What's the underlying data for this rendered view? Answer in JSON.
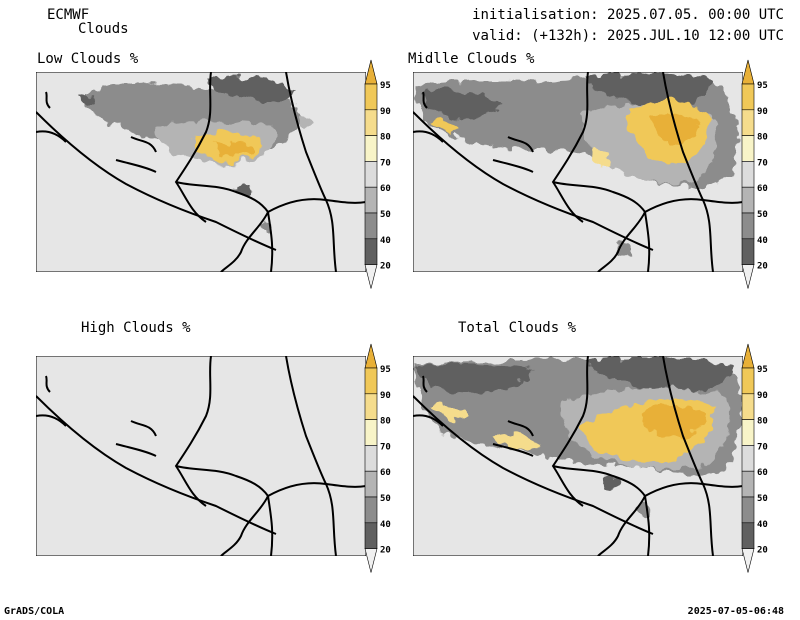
{
  "header": {
    "model": "ECMWF",
    "product": "Clouds",
    "init": "initialisation: 2025.07.05. 00:00 UTC",
    "valid": "valid: (+132h): 2025.JUL.10 12:00 UTC"
  },
  "panels": [
    {
      "title": "Low Clouds %"
    },
    {
      "title": "Midlle Clouds %"
    },
    {
      "title": "High Clouds %"
    },
    {
      "title": "Total Clouds %"
    }
  ],
  "colorbar": {
    "levels": [
      "95",
      "90",
      "80",
      "70",
      "60",
      "50",
      "40",
      "20"
    ],
    "colors": [
      "#e8b038",
      "#f0c858",
      "#f5dc8c",
      "#f8f4c8",
      "#dcdcdc",
      "#b4b4b4",
      "#8c8c8c",
      "#606060",
      "#f0f0f0"
    ]
  },
  "footer": {
    "left": "GrADS/COLA",
    "right": "2025-07-05-06:48"
  }
}
